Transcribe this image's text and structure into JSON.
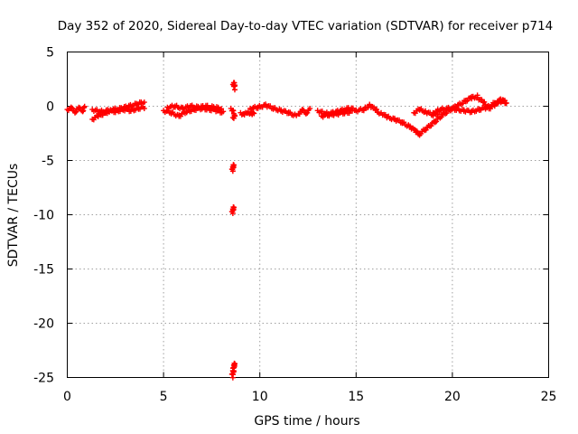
{
  "chart_data": {
    "type": "scatter",
    "title": "Day 352 of 2020, Sidereal Day-to-day VTEC variation (SDTVAR) for receiver p714",
    "xlabel": "GPS time / hours",
    "ylabel": "SDTVAR / TECUs",
    "xlim": [
      0,
      25
    ],
    "ylim": [
      -25,
      5
    ],
    "xticks": [
      0,
      5,
      10,
      15,
      20,
      25
    ],
    "yticks": [
      5,
      0,
      -5,
      -10,
      -15,
      -20,
      -25
    ],
    "grid": true,
    "marker": "plus",
    "series": [
      {
        "name": "p714",
        "color": "#ff0000",
        "segments": [
          {
            "x0": 0.0,
            "x1": 0.9,
            "points": [
              [
                0.0,
                -0.3
              ],
              [
                0.2,
                -0.2
              ],
              [
                0.4,
                -0.5
              ],
              [
                0.6,
                -0.2
              ],
              [
                0.8,
                -0.4
              ],
              [
                0.9,
                -0.1
              ]
            ]
          },
          {
            "x0": 1.3,
            "x1": 4.0,
            "points": [
              [
                1.3,
                -1.2
              ],
              [
                1.6,
                -0.9
              ],
              [
                2.0,
                -0.6
              ],
              [
                2.4,
                -0.3
              ],
              [
                2.8,
                -0.2
              ],
              [
                3.2,
                0.0
              ],
              [
                3.6,
                0.2
              ],
              [
                4.0,
                0.4
              ]
            ]
          },
          {
            "x0": 1.3,
            "x1": 4.0,
            "points": [
              [
                1.3,
                -0.3
              ],
              [
                1.7,
                -0.5
              ],
              [
                2.1,
                -0.4
              ],
              [
                2.5,
                -0.5
              ],
              [
                2.9,
                -0.3
              ],
              [
                3.3,
                -0.4
              ],
              [
                3.7,
                -0.2
              ],
              [
                4.0,
                -0.1
              ]
            ]
          },
          {
            "x0": 5.0,
            "x1": 8.1,
            "points": [
              [
                5.0,
                -0.4
              ],
              [
                5.4,
                -0.6
              ],
              [
                5.8,
                -0.9
              ],
              [
                6.2,
                -0.5
              ],
              [
                6.6,
                -0.3
              ],
              [
                7.0,
                -0.2
              ],
              [
                7.4,
                -0.3
              ],
              [
                7.8,
                -0.4
              ],
              [
                8.1,
                -0.6
              ]
            ]
          },
          {
            "x0": 5.2,
            "x1": 8.0,
            "points": [
              [
                5.2,
                -0.1
              ],
              [
                5.6,
                0.0
              ],
              [
                6.0,
                -0.2
              ],
              [
                6.4,
                0.0
              ],
              [
                6.8,
                -0.1
              ],
              [
                7.2,
                0.0
              ],
              [
                7.6,
                -0.1
              ],
              [
                8.0,
                -0.2
              ]
            ]
          },
          {
            "x0": 8.6,
            "x1": 8.7,
            "points": [
              [
                8.6,
                2.0
              ],
              [
                8.7,
                1.9
              ],
              [
                8.65,
                2.2
              ],
              [
                8.7,
                1.6
              ]
            ]
          },
          {
            "x0": 8.5,
            "x1": 8.7,
            "points": [
              [
                8.5,
                -0.2
              ],
              [
                8.6,
                -0.4
              ],
              [
                8.7,
                -0.9
              ],
              [
                8.6,
                -1.1
              ]
            ]
          },
          {
            "x0": 8.5,
            "x1": 8.7,
            "points": [
              [
                8.55,
                -5.8
              ],
              [
                8.6,
                -5.6
              ],
              [
                8.65,
                -5.4
              ],
              [
                8.6,
                -5.9
              ]
            ]
          },
          {
            "x0": 8.5,
            "x1": 8.7,
            "points": [
              [
                8.55,
                -9.7
              ],
              [
                8.6,
                -9.5
              ],
              [
                8.65,
                -9.3
              ],
              [
                8.6,
                -9.8
              ]
            ]
          },
          {
            "x0": 8.5,
            "x1": 8.7,
            "points": [
              [
                8.55,
                -24.7
              ],
              [
                8.6,
                -24.4
              ],
              [
                8.62,
                -24.1
              ],
              [
                8.65,
                -23.9
              ],
              [
                8.7,
                -23.7
              ],
              [
                8.6,
                -24.9
              ]
            ]
          },
          {
            "x0": 9.0,
            "x1": 9.7,
            "points": [
              [
                9.0,
                -0.6
              ],
              [
                9.2,
                -0.8
              ],
              [
                9.4,
                -0.5
              ],
              [
                9.6,
                -0.8
              ],
              [
                9.7,
                -0.6
              ]
            ]
          },
          {
            "x0": 9.5,
            "x1": 11.9,
            "points": [
              [
                9.5,
                -0.2
              ],
              [
                9.9,
                -0.1
              ],
              [
                10.3,
                0.1
              ],
              [
                10.7,
                -0.2
              ],
              [
                11.1,
                -0.4
              ],
              [
                11.5,
                -0.6
              ],
              [
                11.9,
                -0.9
              ]
            ]
          },
          {
            "x0": 12.0,
            "x1": 12.6,
            "points": [
              [
                12.0,
                -0.7
              ],
              [
                12.2,
                -0.4
              ],
              [
                12.4,
                -0.6
              ],
              [
                12.6,
                -0.3
              ]
            ]
          },
          {
            "x0": 13.0,
            "x1": 15.0,
            "points": [
              [
                13.0,
                -0.4
              ],
              [
                13.4,
                -0.7
              ],
              [
                13.8,
                -0.6
              ],
              [
                14.2,
                -0.4
              ],
              [
                14.6,
                -0.2
              ],
              [
                15.0,
                -0.3
              ]
            ]
          },
          {
            "x0": 13.2,
            "x1": 14.8,
            "points": [
              [
                13.2,
                -0.9
              ],
              [
                13.6,
                -0.8
              ],
              [
                14.0,
                -0.7
              ],
              [
                14.4,
                -0.6
              ],
              [
                14.8,
                -0.5
              ]
            ]
          },
          {
            "x0": 15.0,
            "x1": 16.2,
            "points": [
              [
                15.0,
                -0.4
              ],
              [
                15.4,
                -0.3
              ],
              [
                15.7,
                0.1
              ],
              [
                16.0,
                -0.3
              ],
              [
                16.2,
                -0.6
              ]
            ]
          },
          {
            "x0": 16.3,
            "x1": 18.3,
            "points": [
              [
                16.3,
                -0.6
              ],
              [
                16.6,
                -1.0
              ],
              [
                17.0,
                -1.2
              ],
              [
                17.4,
                -1.5
              ],
              [
                17.8,
                -1.9
              ],
              [
                18.1,
                -2.3
              ],
              [
                18.3,
                -2.6
              ]
            ]
          },
          {
            "x0": 18.3,
            "x1": 21.3,
            "points": [
              [
                18.3,
                -2.5
              ],
              [
                18.7,
                -2.0
              ],
              [
                19.1,
                -1.4
              ],
              [
                19.5,
                -0.8
              ],
              [
                19.9,
                -0.3
              ],
              [
                20.3,
                0.1
              ],
              [
                20.7,
                0.5
              ],
              [
                21.0,
                0.8
              ],
              [
                21.3,
                0.9
              ]
            ]
          },
          {
            "x0": 19.0,
            "x1": 22.8,
            "points": [
              [
                19.0,
                -0.6
              ],
              [
                19.4,
                -0.3
              ],
              [
                19.8,
                -0.2
              ],
              [
                20.2,
                -0.3
              ],
              [
                20.6,
                -0.4
              ],
              [
                21.0,
                -0.5
              ],
              [
                21.4,
                -0.3
              ],
              [
                21.8,
                -0.1
              ],
              [
                22.2,
                0.3
              ],
              [
                22.6,
                0.5
              ],
              [
                22.8,
                0.3
              ]
            ]
          },
          {
            "x0": 18.0,
            "x1": 19.3,
            "points": [
              [
                18.0,
                -0.6
              ],
              [
                18.3,
                -0.3
              ],
              [
                18.6,
                -0.5
              ],
              [
                19.0,
                -0.8
              ],
              [
                19.3,
                -0.6
              ]
            ]
          },
          {
            "x0": 21.3,
            "x1": 22.8,
            "points": [
              [
                21.3,
                0.8
              ],
              [
                21.6,
                0.4
              ],
              [
                21.9,
                -0.2
              ],
              [
                22.2,
                0.1
              ],
              [
                22.5,
                0.6
              ],
              [
                22.8,
                0.4
              ]
            ]
          }
        ]
      }
    ]
  }
}
